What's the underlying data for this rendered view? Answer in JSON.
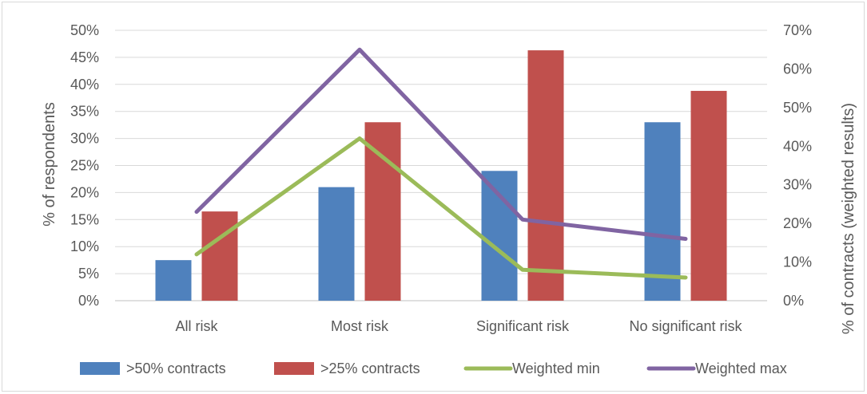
{
  "chart_data": {
    "type": "bar",
    "categories": [
      "All risk",
      "Most risk",
      "Significant risk",
      "No significant risk"
    ],
    "bar_series": [
      {
        "name": ">50% contracts",
        "axis": "left",
        "color": "#4f81bd",
        "values": [
          7.5,
          21,
          24,
          33
        ]
      },
      {
        "name": ">25% contracts",
        "axis": "left",
        "color": "#c0504d",
        "values": [
          16.5,
          33,
          46.3,
          38.8
        ]
      }
    ],
    "line_series": [
      {
        "name": "Weighted min",
        "axis": "right",
        "color": "#9bbb59",
        "values": [
          12,
          42,
          8,
          6
        ]
      },
      {
        "name": "Weighted max",
        "axis": "right",
        "color": "#8064a2",
        "values": [
          23,
          65,
          21,
          16
        ]
      }
    ],
    "ylabel": "% of respondents",
    "y2label": "% of contracts (weighted results)",
    "ylim": [
      0,
      50
    ],
    "y2lim": [
      0,
      70
    ],
    "yticks": [
      "0%",
      "5%",
      "10%",
      "15%",
      "20%",
      "25%",
      "30%",
      "35%",
      "40%",
      "45%",
      "50%"
    ],
    "y2ticks": [
      "0%",
      "10%",
      "20%",
      "30%",
      "40%",
      "50%",
      "60%",
      "70%"
    ],
    "gridlines": true,
    "legend_position": "bottom"
  }
}
